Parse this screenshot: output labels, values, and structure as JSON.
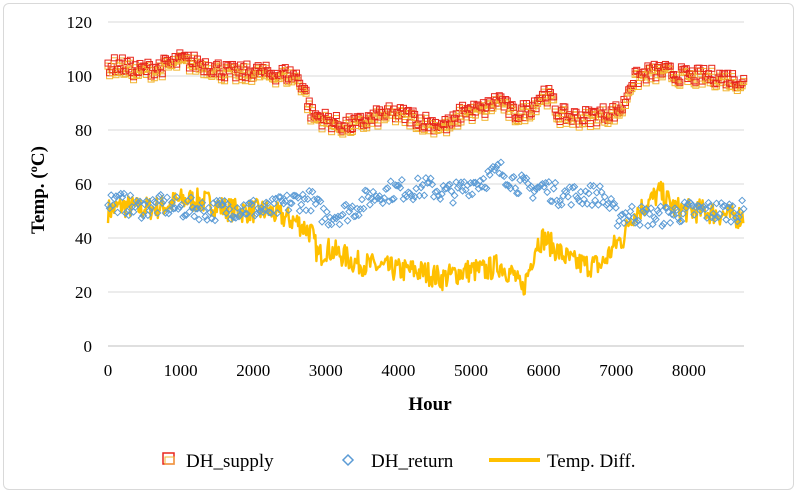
{
  "chart_data": {
    "type": "line",
    "title": "",
    "xlabel": "Hour",
    "ylabel": "Temp. (ºC)",
    "xlim": [
      0,
      8760
    ],
    "ylim": [
      0,
      120
    ],
    "xticks": [
      0,
      1000,
      2000,
      3000,
      4000,
      5000,
      6000,
      7000,
      8000
    ],
    "yticks": [
      0,
      20,
      40,
      60,
      80,
      100,
      120
    ],
    "grid": "horizontal",
    "legend_position": "bottom",
    "series": [
      {
        "name": "DH_supply",
        "marker": "square-open",
        "color": "#e8261c",
        "x": [
          0,
          200,
          400,
          600,
          800,
          1000,
          1200,
          1400,
          1600,
          1800,
          2000,
          2200,
          2400,
          2600,
          2700,
          2800,
          2900,
          3000,
          3200,
          3400,
          3600,
          3800,
          4000,
          4200,
          4400,
          4600,
          4700,
          4800,
          4900,
          5000,
          5200,
          5400,
          5500,
          5600,
          5800,
          6000,
          6100,
          6200,
          6400,
          6600,
          6800,
          7000,
          7100,
          7200,
          7400,
          7600,
          7800,
          8000,
          8200,
          8400,
          8600,
          8760
        ],
        "y": [
          104,
          104,
          102,
          103,
          104,
          106,
          105,
          104,
          102,
          101,
          102,
          101,
          101,
          100,
          96,
          86,
          85,
          84,
          82,
          82,
          84,
          86,
          86,
          85,
          83,
          82,
          82,
          84,
          88,
          87,
          88,
          92,
          88,
          86,
          88,
          94,
          92,
          86,
          85,
          85,
          86,
          87,
          89,
          98,
          101,
          102,
          101,
          100,
          100,
          100,
          99,
          98
        ]
      },
      {
        "name": "DH_return",
        "marker": "diamond-open",
        "color": "#5b9bd5",
        "x": [
          0,
          200,
          400,
          600,
          800,
          1000,
          1200,
          1400,
          1600,
          1800,
          2000,
          2200,
          2400,
          2600,
          2800,
          3000,
          3200,
          3400,
          3600,
          3800,
          4000,
          4200,
          4400,
          4600,
          4800,
          5000,
          5200,
          5400,
          5600,
          5800,
          6000,
          6200,
          6400,
          6600,
          6800,
          7000,
          7200,
          7400,
          7600,
          7800,
          8000,
          8200,
          8400,
          8600,
          8760
        ],
        "y": [
          54,
          53,
          51,
          52,
          52,
          51,
          51,
          50,
          51,
          51,
          51,
          50,
          52,
          54,
          54,
          48,
          49,
          51,
          55,
          57,
          58,
          58,
          59,
          57,
          57,
          60,
          62,
          65,
          61,
          58,
          59,
          56,
          56,
          56,
          56,
          48,
          49,
          48,
          48,
          49,
          50,
          50,
          50,
          50,
          50
        ]
      },
      {
        "name": "Temp. Diff.",
        "marker": "line",
        "color": "#ffc000",
        "x": [
          0,
          200,
          400,
          600,
          800,
          1000,
          1200,
          1400,
          1600,
          1800,
          2000,
          2200,
          2400,
          2600,
          2800,
          2900,
          3000,
          3200,
          3400,
          3600,
          3800,
          4000,
          4200,
          4400,
          4600,
          4800,
          5000,
          5200,
          5400,
          5600,
          5700,
          5800,
          5900,
          6000,
          6200,
          6400,
          6600,
          6800,
          7000,
          7100,
          7200,
          7400,
          7600,
          7800,
          8000,
          8200,
          8400,
          8600,
          8760
        ],
        "y": [
          50,
          52,
          51,
          51,
          52,
          54,
          54,
          53,
          51,
          50,
          50,
          50,
          48,
          46,
          42,
          33,
          36,
          34,
          31,
          30,
          29,
          28,
          28,
          27,
          25,
          27,
          28,
          28,
          30,
          26,
          20,
          28,
          38,
          40,
          35,
          31,
          30,
          30,
          38,
          40,
          48,
          52,
          57,
          51,
          50,
          50,
          49,
          48,
          48
        ]
      }
    ]
  }
}
